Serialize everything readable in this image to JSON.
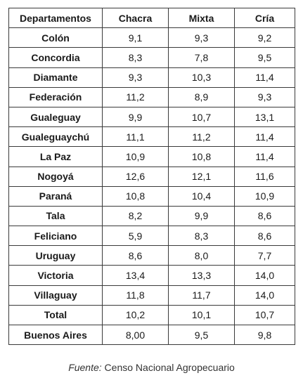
{
  "table": {
    "headers": [
      "Departamentos",
      "Chacra",
      "Mixta",
      "Cría"
    ],
    "rows": [
      {
        "departamento": "Colón",
        "chacra": "9,1",
        "mixta": "9,3",
        "cria": "9,2"
      },
      {
        "departamento": "Concordia",
        "chacra": "8,3",
        "mixta": "7,8",
        "cria": "9,5"
      },
      {
        "departamento": "Diamante",
        "chacra": "9,3",
        "mixta": "10,3",
        "cria": "11,4"
      },
      {
        "departamento": "Federación",
        "chacra": "11,2",
        "mixta": "8,9",
        "cria": "9,3"
      },
      {
        "departamento": "Gualeguay",
        "chacra": "9,9",
        "mixta": "10,7",
        "cria": "13,1"
      },
      {
        "departamento": "Gualeguaychú",
        "chacra": "11,1",
        "mixta": "11,2",
        "cria": "11,4"
      },
      {
        "departamento": "La Paz",
        "chacra": "10,9",
        "mixta": "10,8",
        "cria": "11,4"
      },
      {
        "departamento": "Nogoyá",
        "chacra": "12,6",
        "mixta": "12,1",
        "cria": "11,6"
      },
      {
        "departamento": "Paraná",
        "chacra": "10,8",
        "mixta": "10,4",
        "cria": "10,9"
      },
      {
        "departamento": "Tala",
        "chacra": "8,2",
        "mixta": "9,9",
        "cria": "8,6"
      },
      {
        "departamento": "Feliciano",
        "chacra": "5,9",
        "mixta": "8,3",
        "cria": "8,6"
      },
      {
        "departamento": "Uruguay",
        "chacra": "8,6",
        "mixta": "8,0",
        "cria": "7,7"
      },
      {
        "departamento": "Victoria",
        "chacra": "13,4",
        "mixta": "13,3",
        "cria": "14,0"
      },
      {
        "departamento": "Villaguay",
        "chacra": "11,8",
        "mixta": "11,7",
        "cria": "14,0"
      },
      {
        "departamento": "Total",
        "chacra": "10,2",
        "mixta": "10,1",
        "cria": "10,7"
      },
      {
        "departamento": "Buenos Aires",
        "chacra": "8,00",
        "mixta": "9,5",
        "cria": "9,8"
      }
    ]
  },
  "source": {
    "label": "Fuente:",
    "text": " Censo Nacional Agropecuario"
  }
}
